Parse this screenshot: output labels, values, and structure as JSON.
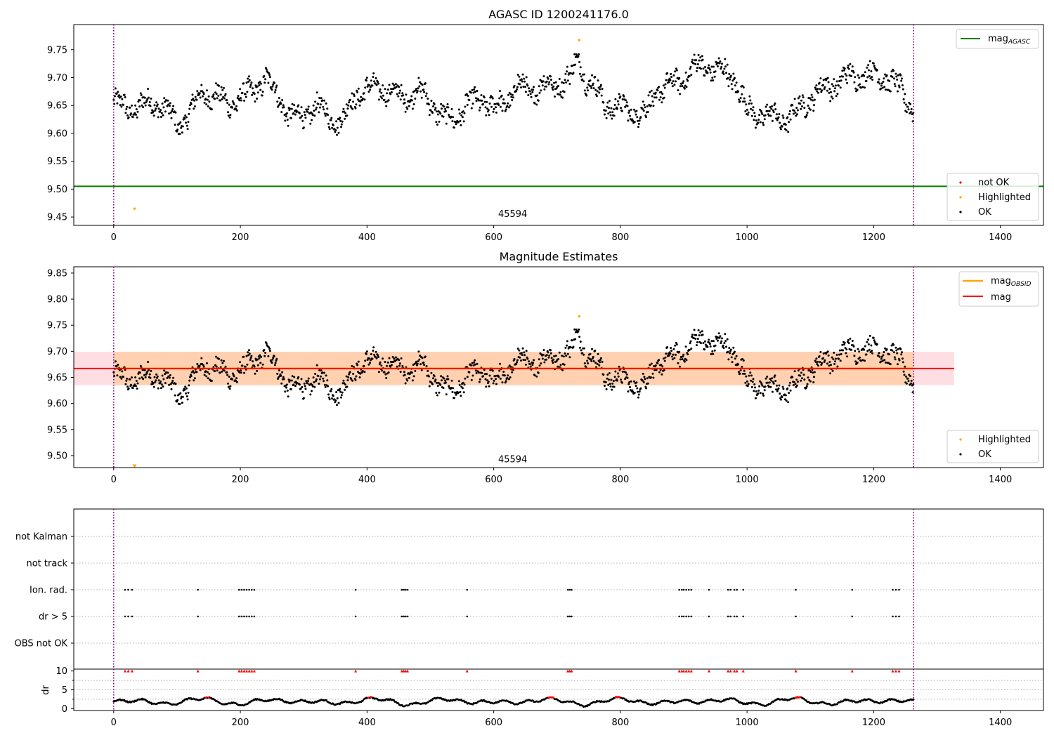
{
  "chart_data": [
    {
      "id": "agasc",
      "type": "scatter",
      "title": "AGASC ID 1200241176.0",
      "xlim": [
        -63,
        1468
      ],
      "ylim": [
        9.435,
        9.795
      ],
      "yticks": [
        9.45,
        9.5,
        9.55,
        9.6,
        9.65,
        9.7,
        9.75
      ],
      "xticks": [
        0,
        200,
        400,
        600,
        800,
        1000,
        1200,
        1400
      ],
      "hline": {
        "name": "mag$_{AGASC}$",
        "label_main": "mag",
        "label_sub": "AGASC",
        "value": 9.505,
        "color": "#008000"
      },
      "vlines": [
        0,
        1263
      ],
      "annotation": {
        "text": "45594",
        "x": 630,
        "y": 9.45
      },
      "legend_series": [
        {
          "name": "not OK",
          "color": "#ff0000"
        },
        {
          "name": "Highlighted",
          "color": "#ffa500"
        },
        {
          "name": "OK",
          "color": "#000000"
        }
      ],
      "highlighted_points": [
        [
          33,
          9.465
        ],
        [
          735,
          9.767
        ]
      ],
      "curve_knots": [
        [
          0,
          9.655
        ],
        [
          20,
          9.645
        ],
        [
          40,
          9.648
        ],
        [
          60,
          9.655
        ],
        [
          80,
          9.647
        ],
        [
          100,
          9.615
        ],
        [
          120,
          9.635
        ],
        [
          140,
          9.675
        ],
        [
          160,
          9.665
        ],
        [
          180,
          9.655
        ],
        [
          200,
          9.66
        ],
        [
          220,
          9.68
        ],
        [
          240,
          9.695
        ],
        [
          260,
          9.67
        ],
        [
          280,
          9.625
        ],
        [
          300,
          9.635
        ],
        [
          320,
          9.645
        ],
        [
          340,
          9.635
        ],
        [
          360,
          9.615
        ],
        [
          380,
          9.67
        ],
        [
          400,
          9.675
        ],
        [
          420,
          9.685
        ],
        [
          440,
          9.67
        ],
        [
          460,
          9.665
        ],
        [
          480,
          9.675
        ],
        [
          500,
          9.66
        ],
        [
          520,
          9.625
        ],
        [
          540,
          9.63
        ],
        [
          560,
          9.65
        ],
        [
          580,
          9.665
        ],
        [
          600,
          9.64
        ],
        [
          620,
          9.66
        ],
        [
          640,
          9.685
        ],
        [
          660,
          9.675
        ],
        [
          680,
          9.685
        ],
        [
          700,
          9.69
        ],
        [
          720,
          9.695
        ],
        [
          735,
          9.74
        ],
        [
          745,
          9.695
        ],
        [
          760,
          9.68
        ],
        [
          780,
          9.65
        ],
        [
          800,
          9.645
        ],
        [
          820,
          9.64
        ],
        [
          840,
          9.635
        ],
        [
          860,
          9.68
        ],
        [
          880,
          9.685
        ],
        [
          900,
          9.7
        ],
        [
          920,
          9.72
        ],
        [
          940,
          9.72
        ],
        [
          960,
          9.71
        ],
        [
          980,
          9.7
        ],
        [
          1000,
          9.64
        ],
        [
          1020,
          9.635
        ],
        [
          1040,
          9.63
        ],
        [
          1060,
          9.625
        ],
        [
          1080,
          9.64
        ],
        [
          1100,
          9.665
        ],
        [
          1120,
          9.68
        ],
        [
          1140,
          9.69
        ],
        [
          1160,
          9.7
        ],
        [
          1180,
          9.705
        ],
        [
          1200,
          9.705
        ],
        [
          1220,
          9.7
        ],
        [
          1240,
          9.68
        ],
        [
          1263,
          9.645
        ]
      ]
    },
    {
      "id": "estimates",
      "type": "scatter",
      "title": "Magnitude Estimates",
      "xlim": [
        -63,
        1468
      ],
      "ylim": [
        9.477,
        9.862
      ],
      "yticks": [
        9.5,
        9.55,
        9.6,
        9.65,
        9.7,
        9.75,
        9.8,
        9.85
      ],
      "xticks": [
        0,
        200,
        400,
        600,
        800,
        1000,
        1200,
        1400
      ],
      "mag_line": {
        "name": "mag",
        "value": 9.667,
        "color": "#ff0000",
        "band": [
          9.635,
          9.699
        ],
        "x_range": [
          -63,
          1327
        ]
      },
      "mag_obsid": {
        "label_main": "mag",
        "label_sub": "OBSID",
        "color": "#ffa500",
        "value": 9.667,
        "band": [
          9.635,
          9.699
        ],
        "x_range": [
          0,
          1263
        ]
      },
      "vlines": [
        0,
        1263
      ],
      "annotation": {
        "text": "45594",
        "x": 630,
        "y": 9.487
      },
      "legend_series": [
        {
          "name": "Highlighted",
          "color": "#ffa500"
        },
        {
          "name": "OK",
          "color": "#000000"
        }
      ],
      "highlighted_points": [
        [
          33,
          9.479
        ],
        [
          735,
          9.767
        ]
      ]
    },
    {
      "id": "flags",
      "type": "scatter",
      "xlim": [
        -63,
        1468
      ],
      "categories": [
        "not Kalman",
        "not track",
        "Ion. rad.",
        "dr > 5",
        "OBS not OK"
      ],
      "flag_x": [
        18,
        23,
        29,
        133,
        198,
        202,
        206,
        210,
        214,
        218,
        222,
        382,
        455,
        458,
        461,
        464,
        558,
        717,
        720,
        723,
        893,
        897,
        900,
        904,
        908,
        912,
        940,
        970,
        974,
        980,
        984,
        994,
        1077,
        1166,
        1230,
        1235,
        1240
      ],
      "flagged_categories": [
        "Ion. rad.",
        "dr > 5"
      ],
      "vlines": [
        0,
        1263
      ]
    },
    {
      "id": "dr",
      "type": "scatter",
      "ylabel": "dr",
      "xlim": [
        -63,
        1468
      ],
      "ylim": [
        -0.5,
        10.5
      ],
      "yticks": [
        0,
        5,
        10
      ],
      "xticks": [
        0,
        200,
        400,
        600,
        800,
        1000,
        1200,
        1400
      ],
      "marker_y": 10,
      "vlines": [
        0,
        1263
      ]
    }
  ]
}
